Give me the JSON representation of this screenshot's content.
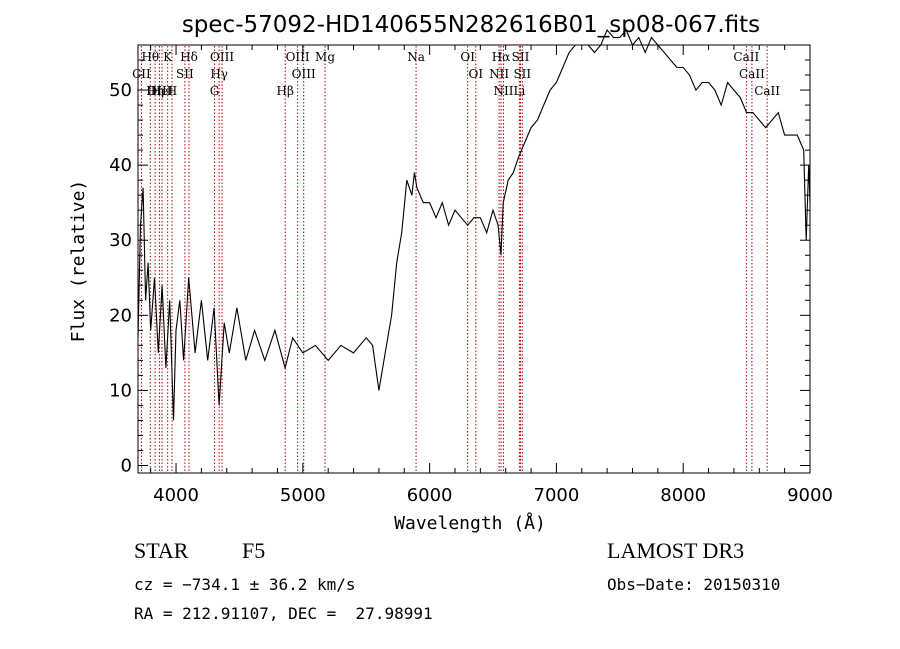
{
  "chart_data": {
    "type": "line",
    "title": "spec-57092-HD140655N282616B01_sp08-067.fits",
    "xlabel": "Wavelength (Å)",
    "ylabel": "Flux (relative)",
    "xlim": [
      3700,
      9000
    ],
    "ylim": [
      -1,
      56
    ],
    "xticks": [
      4000,
      5000,
      6000,
      7000,
      8000,
      9000
    ],
    "yticks": [
      0,
      10,
      20,
      30,
      40,
      50
    ],
    "grid": false,
    "series": [
      {
        "x": [
          3700,
          3720,
          3740,
          3760,
          3780,
          3800,
          3830,
          3860,
          3890,
          3920,
          3950,
          3980,
          4000,
          4030,
          4060,
          4100,
          4150,
          4200,
          4250,
          4300,
          4340,
          4380,
          4420,
          4480,
          4550,
          4620,
          4700,
          4780,
          4860,
          4920,
          5000,
          5100,
          5200,
          5300,
          5400,
          5500,
          5550,
          5600,
          5650,
          5700,
          5740,
          5780,
          5820,
          5860,
          5880,
          5900,
          5950,
          6000,
          6050,
          6100,
          6150,
          6200,
          6250,
          6300,
          6350,
          6400,
          6450,
          6500,
          6540,
          6563,
          6580,
          6620,
          6660,
          6700,
          6750,
          6800,
          6850,
          6900,
          6950,
          7000,
          7050,
          7100,
          7150,
          7200,
          7250,
          7300,
          7350,
          7400,
          7450,
          7500,
          7550,
          7600,
          7650,
          7700,
          7750,
          7800,
          7850,
          7900,
          7950,
          8000,
          8050,
          8100,
          8150,
          8200,
          8250,
          8300,
          8350,
          8400,
          8450,
          8500,
          8550,
          8600,
          8650,
          8700,
          8750,
          8800,
          8850,
          8900,
          8950,
          8970,
          8990,
          9000
        ],
        "y": [
          17,
          32,
          37,
          22,
          27,
          18,
          25,
          15,
          24,
          13,
          22,
          6,
          18,
          22,
          14,
          25,
          15,
          22,
          14,
          21,
          8,
          19,
          15,
          21,
          14,
          18,
          14,
          18,
          13,
          17,
          15,
          16,
          14,
          16,
          15,
          17,
          16,
          10,
          15,
          20,
          27,
          31,
          38,
          36,
          39,
          37,
          35,
          35,
          33,
          35,
          32,
          34,
          33,
          32,
          33,
          33,
          31,
          34,
          32,
          28,
          35,
          38,
          39,
          41,
          43,
          45,
          46,
          48,
          50,
          51,
          53,
          55,
          56,
          56,
          56,
          55,
          56,
          58,
          57,
          57,
          58,
          56,
          57,
          55,
          57,
          56,
          55,
          54,
          53,
          53,
          52,
          50,
          51,
          51,
          50,
          48,
          51,
          50,
          49,
          47,
          47,
          46,
          45,
          46,
          47,
          44,
          44,
          44,
          42,
          30,
          40,
          35
        ]
      }
    ],
    "lines": [
      {
        "label": "Hθ",
        "x": 3797
      },
      {
        "label": "K",
        "x": 3934
      },
      {
        "label": "Hδ",
        "x": 4102
      },
      {
        "label": "OIII",
        "x": 4363
      },
      {
        "label": "OIII",
        "x": 4959
      },
      {
        "label": "CII",
        "x": 3727
      },
      {
        "label": "HeI",
        "x": 3889
      },
      {
        "label": "SII",
        "x": 4070
      },
      {
        "label": "Hγ",
        "x": 4340
      },
      {
        "label": "OIII",
        "x": 5007
      },
      {
        "label": "OIII",
        "x": 3869
      },
      {
        "label": "Hη",
        "x": 3835
      },
      {
        "label": "H",
        "x": 3968
      },
      {
        "label": "G",
        "x": 4304
      },
      {
        "label": "Hβ",
        "x": 4861
      },
      {
        "label": "Mg",
        "x": 5175
      },
      {
        "label": "Na",
        "x": 5893
      },
      {
        "label": "OI",
        "x": 6300
      },
      {
        "label": "OI",
        "x": 6364
      },
      {
        "label": "Hα",
        "x": 6563
      },
      {
        "label": "NII",
        "x": 6548
      },
      {
        "label": "NII",
        "x": 6583
      },
      {
        "label": "SII",
        "x": 6717
      },
      {
        "label": "SII",
        "x": 6731
      },
      {
        "label": "Li",
        "x": 6708
      },
      {
        "label": "CaII",
        "x": 8498
      },
      {
        "label": "CaII",
        "x": 8542
      },
      {
        "label": "CaII",
        "x": 8662
      }
    ]
  },
  "info": {
    "class_label": "STAR",
    "subclass_label": "F5",
    "survey": "LAMOST DR3",
    "cz": "cz = −734.1 ± 36.2 km/s",
    "obs_date": "Obs−Date: 20150310",
    "coords": "RA = 212.91107, DEC =  27.98991"
  },
  "colors": {
    "spectrum": "#000000",
    "lines": "#b00000",
    "axes": "#000000"
  }
}
